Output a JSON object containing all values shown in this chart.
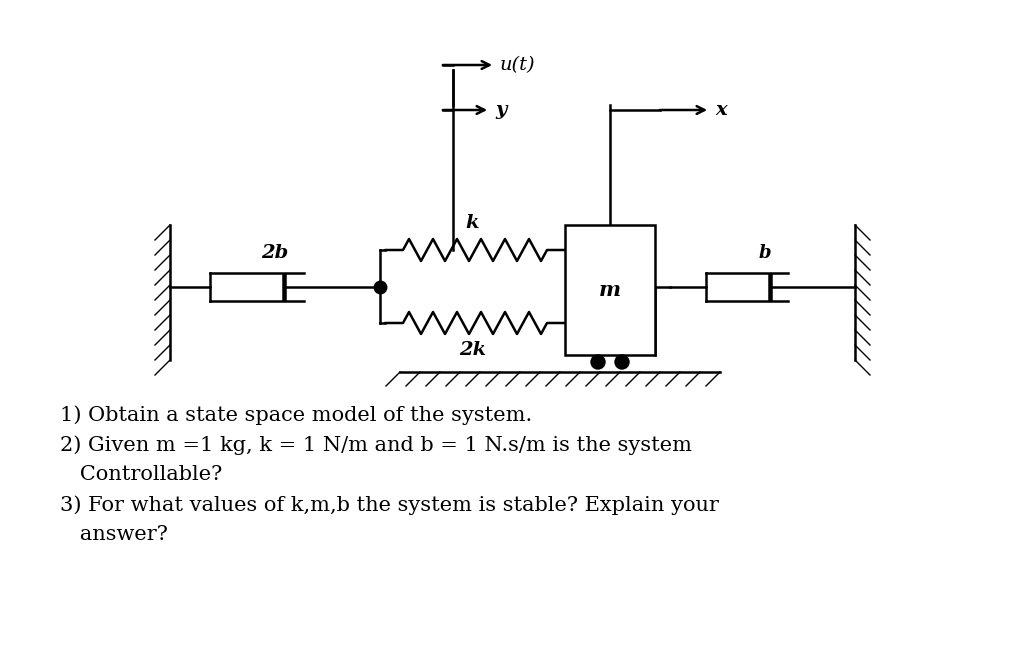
{
  "bg_color": "#ffffff",
  "text_color": "#000000",
  "fig_width": 10.13,
  "fig_height": 6.55,
  "dpi": 100,
  "label_2b": "2b",
  "label_k": "k",
  "label_2k": "2k",
  "label_m": "m",
  "label_b": "b",
  "label_ut": "u(t)",
  "label_y": "y",
  "label_x": "x",
  "q1": "1) Obtain a state space model of the system.",
  "q2a": "2) Given m =1 kg, k = 1 N/m and b = 1 N.s/m is the system",
  "q2b": "   Controllable?",
  "q3a": "3) For what values of k,m,b the system is stable? Explain your",
  "q3b": "   answer?"
}
